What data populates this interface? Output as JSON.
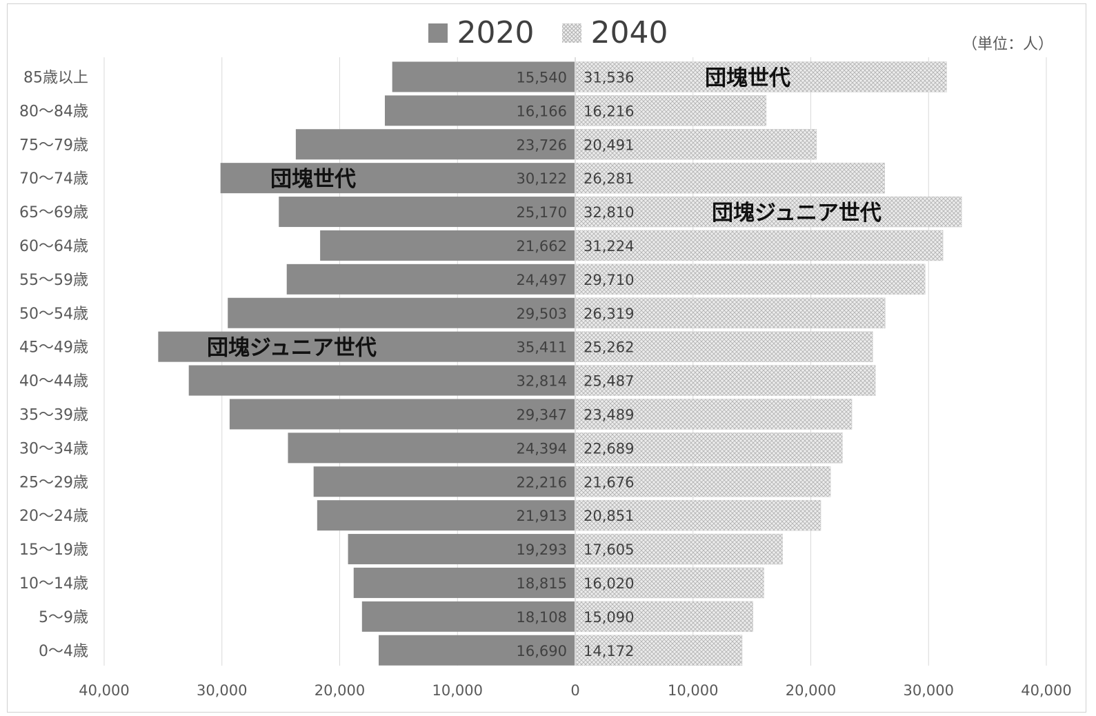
{
  "chart_data": {
    "type": "bar",
    "orientation": "horizontal",
    "layout": "population-pyramid",
    "unit_note": "（単位：人）",
    "categories": [
      "85歳以上",
      "80～84歳",
      "75～79歳",
      "70～74歳",
      "65～69歳",
      "60～64歳",
      "55～59歳",
      "50～54歳",
      "45～49歳",
      "40～44歳",
      "35～39歳",
      "30～34歳",
      "25～29歳",
      "20～24歳",
      "15～19歳",
      "10～14歳",
      "5～9歳",
      "0～4歳"
    ],
    "series": [
      {
        "name": "2020",
        "side": "left",
        "color": "#8a8a8a",
        "values": [
          15540,
          16166,
          23726,
          30122,
          25170,
          21662,
          24497,
          29503,
          35411,
          32814,
          29347,
          24394,
          22216,
          21913,
          19293,
          18815,
          18108,
          16690
        ],
        "labels": [
          "15,540",
          "16,166",
          "23,726",
          "30,122",
          "25,170",
          "21,662",
          "24,497",
          "29,503",
          "35,411",
          "32,814",
          "29,347",
          "24,394",
          "22,216",
          "21,913",
          "19,293",
          "18,815",
          "18,108",
          "16,690"
        ]
      },
      {
        "name": "2040",
        "side": "right",
        "color": "#e0e0e0",
        "pattern": "crosshatch",
        "values": [
          31536,
          16216,
          20491,
          26281,
          32810,
          31224,
          29710,
          26319,
          25262,
          25487,
          23489,
          22689,
          21676,
          20851,
          17605,
          16020,
          15090,
          14172
        ],
        "labels": [
          "31,536",
          "16,216",
          "20,491",
          "26,281",
          "32,810",
          "31,224",
          "29,710",
          "26,319",
          "25,262",
          "25,487",
          "23,489",
          "22,689",
          "21,676",
          "20,851",
          "17,605",
          "16,020",
          "15,090",
          "14,172"
        ]
      }
    ],
    "x_ticks": [
      -40000,
      -30000,
      -20000,
      -10000,
      0,
      10000,
      20000,
      30000,
      40000
    ],
    "x_tick_labels": [
      "40,000",
      "30,000",
      "20,000",
      "10,000",
      "0",
      "10,000",
      "20,000",
      "30,000",
      "40,000"
    ],
    "xlim": [
      -40000,
      40000
    ],
    "grid": true,
    "legend_position": "top",
    "annotations": [
      {
        "text": "団塊世代",
        "series": "2020",
        "category": "70～74歳"
      },
      {
        "text": "団塊ジュニア世代",
        "series": "2020",
        "category": "45～49歳"
      },
      {
        "text": "団塊世代",
        "series": "2040",
        "category": "85歳以上"
      },
      {
        "text": "団塊ジュニア世代",
        "series": "2040",
        "category": "65～69歳"
      }
    ]
  }
}
